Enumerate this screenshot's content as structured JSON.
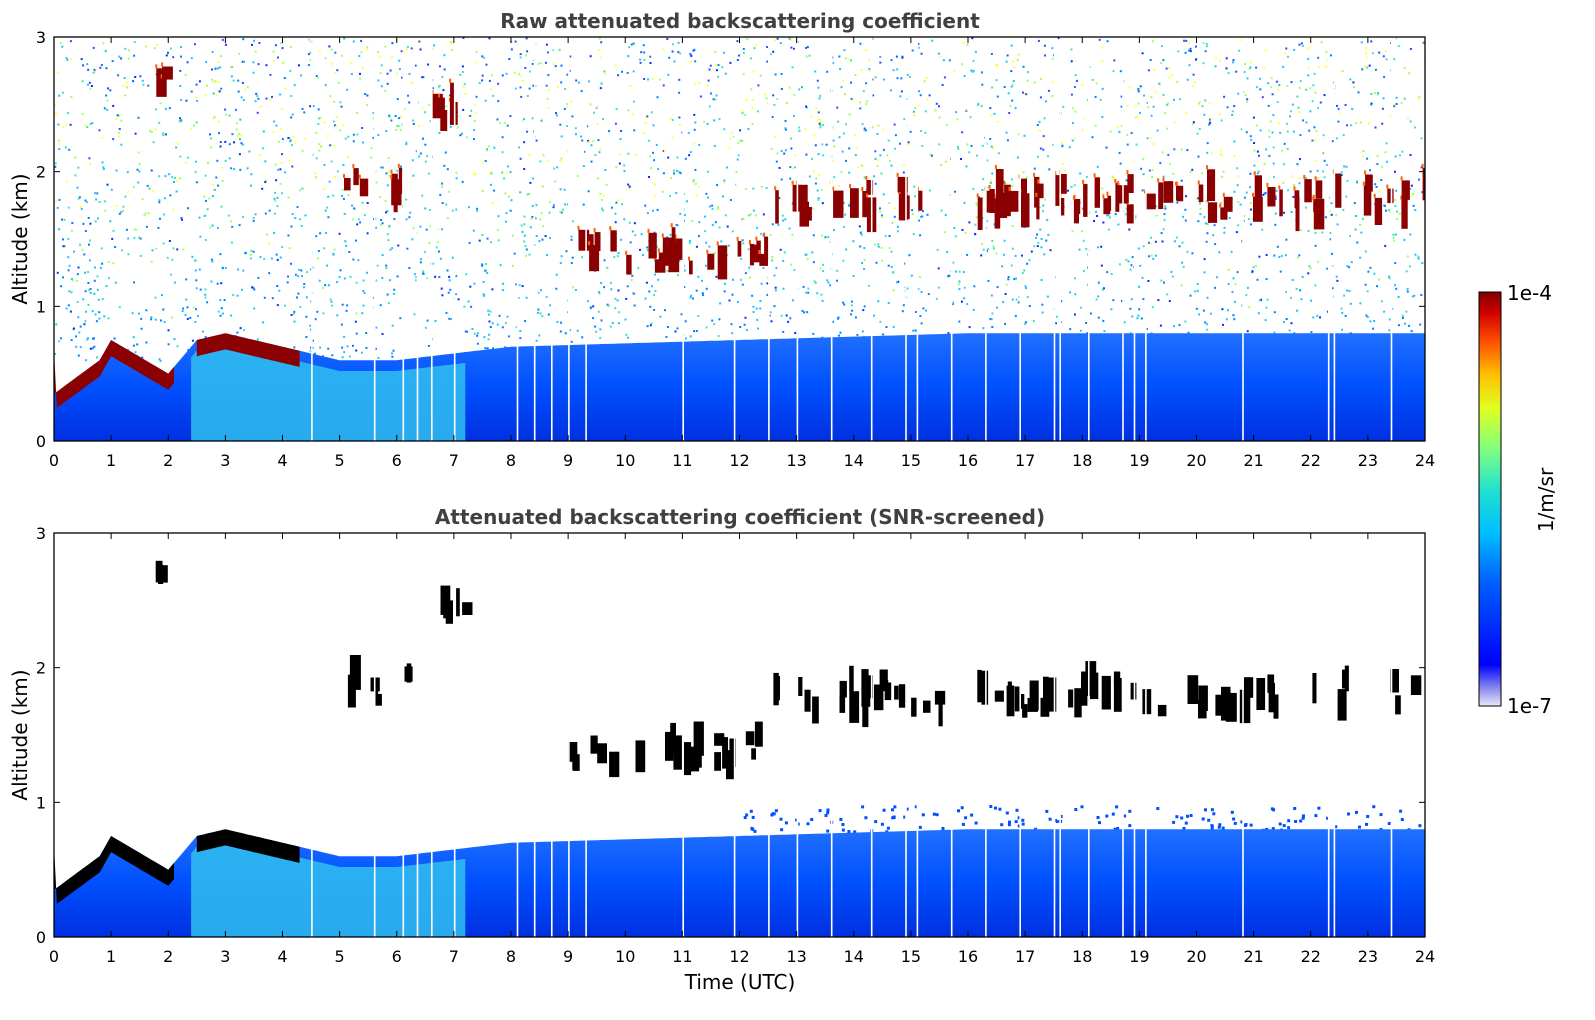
{
  "chart_data": [
    {
      "type": "heatmap",
      "title": "Raw attenuated backscattering coefficient",
      "ylabel": "Altitude (km)",
      "xlabel": "",
      "xlim": [
        0,
        24
      ],
      "ylim": [
        0,
        3
      ],
      "x_ticks": [
        "0",
        "1",
        "2",
        "3",
        "4",
        "5",
        "6",
        "7",
        "8",
        "9",
        "10",
        "11",
        "12",
        "13",
        "14",
        "15",
        "16",
        "17",
        "18",
        "19",
        "20",
        "21",
        "22",
        "23",
        "24"
      ],
      "y_ticks": [
        "0",
        "1",
        "2",
        "3"
      ],
      "boundary_layer_top_km": [
        [
          0,
          0.35
        ],
        [
          0.8,
          0.6
        ],
        [
          1,
          0.75
        ],
        [
          2,
          0.5
        ],
        [
          2.5,
          0.75
        ],
        [
          3,
          0.8
        ],
        [
          4,
          0.7
        ],
        [
          5,
          0.6
        ],
        [
          6,
          0.6
        ],
        [
          7,
          0.65
        ],
        [
          8,
          0.7
        ],
        [
          12,
          0.75
        ],
        [
          16,
          0.8
        ],
        [
          20,
          0.8
        ],
        [
          24,
          0.8
        ]
      ],
      "cloud_features": [
        {
          "t_start": 1.7,
          "t_end": 2.1,
          "alt_km": 2.65
        },
        {
          "t_start": 5.0,
          "t_end": 6.2,
          "alt_km": 1.85
        },
        {
          "t_start": 6.4,
          "t_end": 7.3,
          "alt_km": 2.5
        },
        {
          "t_start": 8.9,
          "t_end": 12.5,
          "alt_km": 1.4
        },
        {
          "t_start": 12.5,
          "t_end": 24.0,
          "alt_km": 1.8
        }
      ],
      "noise_screened": false
    },
    {
      "type": "heatmap",
      "title": "Attenuated backscattering coefficient (SNR-screened)",
      "ylabel": "Altitude (km)",
      "xlabel": "Time (UTC)",
      "xlim": [
        0,
        24
      ],
      "ylim": [
        0,
        3
      ],
      "x_ticks": [
        "0",
        "1",
        "2",
        "3",
        "4",
        "5",
        "6",
        "7",
        "8",
        "9",
        "10",
        "11",
        "12",
        "13",
        "14",
        "15",
        "16",
        "17",
        "18",
        "19",
        "20",
        "21",
        "22",
        "23",
        "24"
      ],
      "y_ticks": [
        "0",
        "1",
        "2",
        "3"
      ],
      "boundary_layer_top_km": [
        [
          0,
          0.35
        ],
        [
          0.8,
          0.6
        ],
        [
          1,
          0.75
        ],
        [
          2,
          0.5
        ],
        [
          2.5,
          0.75
        ],
        [
          3,
          0.8
        ],
        [
          4,
          0.7
        ],
        [
          5,
          0.6
        ],
        [
          6,
          0.6
        ],
        [
          7,
          0.65
        ],
        [
          8,
          0.7
        ],
        [
          12,
          0.75
        ],
        [
          16,
          0.8
        ],
        [
          20,
          0.8
        ],
        [
          24,
          0.8
        ]
      ],
      "cloud_features": [
        {
          "t_start": 1.7,
          "t_end": 2.1,
          "alt_km": 2.65
        },
        {
          "t_start": 5.0,
          "t_end": 6.2,
          "alt_km": 1.85
        },
        {
          "t_start": 6.4,
          "t_end": 7.3,
          "alt_km": 2.5
        },
        {
          "t_start": 8.9,
          "t_end": 12.5,
          "alt_km": 1.4
        },
        {
          "t_start": 12.5,
          "t_end": 24.0,
          "alt_km": 1.8
        }
      ],
      "noise_screened": true
    }
  ],
  "colorbar": {
    "max_label": "1e-4",
    "min_label": "1e-7",
    "unit": "1/m/sr",
    "scale": "log",
    "range": [
      1e-07,
      0.0001
    ],
    "colormap": "jet"
  },
  "colors": {
    "title": "#404040",
    "cloud_core": "#8b0000",
    "screened_cloud_core": "#000000",
    "boundary_layer": "#1040ff"
  }
}
